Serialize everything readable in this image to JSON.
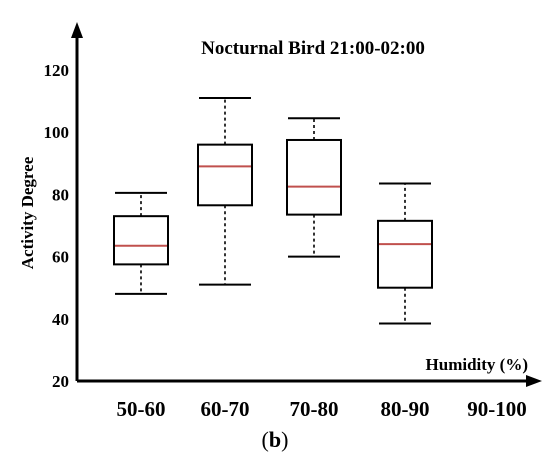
{
  "chart_data": {
    "type": "box",
    "title": "Nocturnal Bird 21:00-02:00",
    "xlabel": "Humidity (%)",
    "ylabel": "Activity Degree",
    "panel_label_parts": [
      "(",
      "b",
      ")"
    ],
    "categories": [
      "50-60",
      "60-70",
      "70-80",
      "80-90",
      "90-100"
    ],
    "yticks": [
      "20",
      "40",
      "60",
      "80",
      "100",
      "120"
    ],
    "ylim": [
      20,
      120
    ],
    "grid": false,
    "colors": {
      "axis": "#000000",
      "box": "#000000",
      "median": "#c0504d",
      "whisker": "#000000"
    },
    "boxes": [
      {
        "category": "50-60",
        "min": 48,
        "q1": 57.5,
        "median": 63.5,
        "q3": 73,
        "max": 80.5
      },
      {
        "category": "60-70",
        "min": 51,
        "q1": 76.5,
        "median": 89,
        "q3": 96,
        "max": 111
      },
      {
        "category": "70-80",
        "min": 60,
        "q1": 73.5,
        "median": 82.5,
        "q3": 97.5,
        "max": 104.5
      },
      {
        "category": "80-90",
        "min": 38.5,
        "q1": 50,
        "median": 64,
        "q3": 71.5,
        "max": 83.5
      }
    ]
  }
}
